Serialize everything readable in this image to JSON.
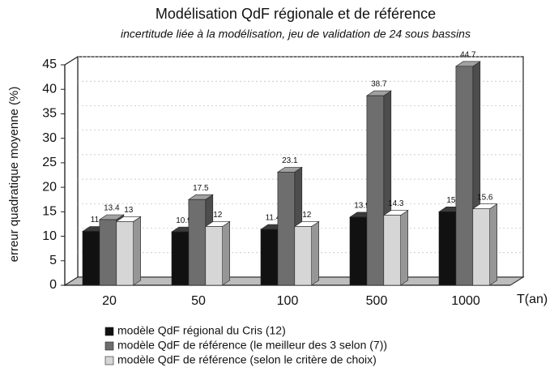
{
  "chart_data": {
    "type": "bar3d",
    "title": "Modélisation QdF régionale et de référence",
    "subtitle": "incertitude liée à la modélisation, jeu de validation de 24 sous bassins",
    "x_label": "T(an)",
    "y_label": "erreur quadratique moyenne (%)",
    "categories": [
      "20",
      "50",
      "100",
      "500",
      "1000"
    ],
    "series": [
      {
        "name": "modèle QdF régional du Cris (12)",
        "color": "#111111",
        "values": [
          11,
          10.9,
          11.4,
          13.9,
          15
        ]
      },
      {
        "name": "modèle QdF de référence (le meilleur des 3 selon (7))",
        "color": "#6e6e6e",
        "values": [
          13.4,
          17.5,
          23.1,
          38.7,
          44.7
        ]
      },
      {
        "name": "modèle QdF de référence (selon le critère de choix)",
        "color": "#d6d6d6",
        "values": [
          13,
          12,
          12,
          14.3,
          15.6
        ]
      }
    ],
    "ylim": [
      0,
      45
    ],
    "yticks": [
      0,
      5,
      10,
      15,
      20,
      25,
      30,
      35,
      40,
      45
    ],
    "grid": true
  }
}
